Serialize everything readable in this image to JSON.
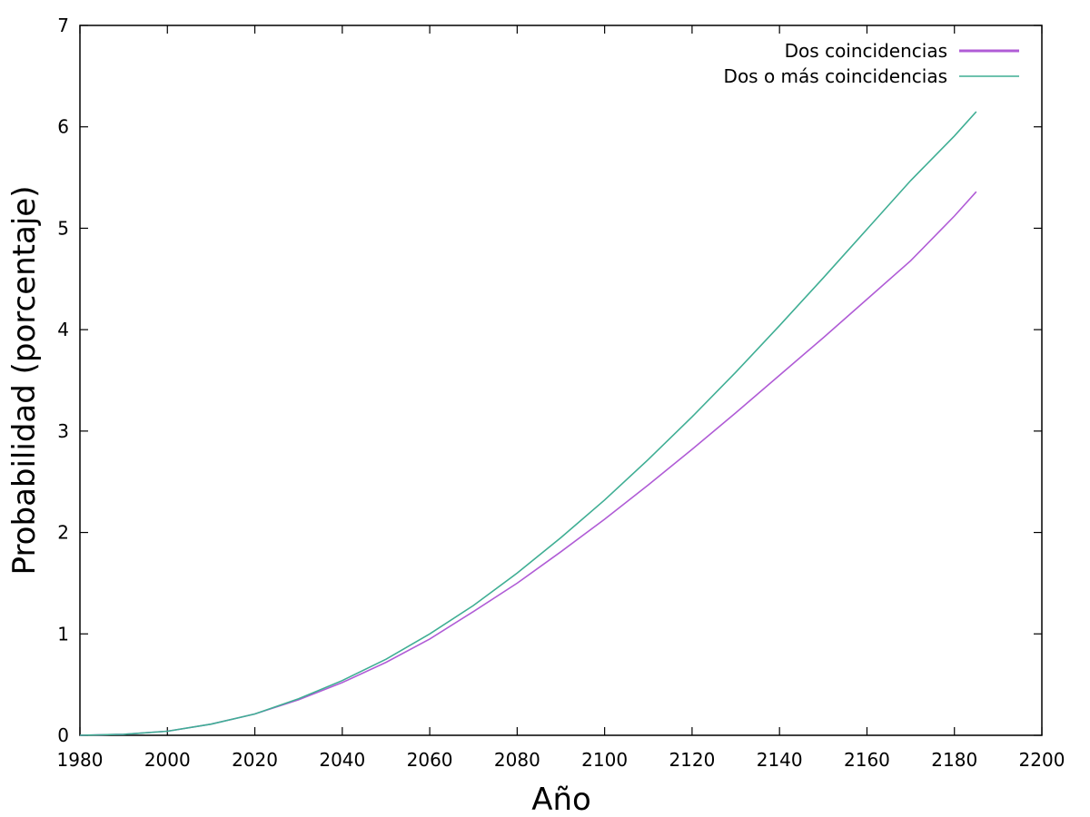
{
  "chart_data": {
    "type": "line",
    "title": "",
    "xlabel": "Año",
    "ylabel": "Probabilidad (porcentaje)",
    "xlim": [
      1980,
      2200
    ],
    "ylim": [
      0,
      7
    ],
    "x_ticks": [
      "1980",
      "2000",
      "2020",
      "2040",
      "2060",
      "2080",
      "2100",
      "2120",
      "2140",
      "2160",
      "2180",
      "2200"
    ],
    "y_ticks": [
      "0",
      "1",
      "2",
      "3",
      "4",
      "5",
      "6",
      "7"
    ],
    "grid": false,
    "legend_position": "top-right",
    "series": [
      {
        "name": "Dos coincidencias",
        "color": "#b05cd6",
        "x": [
          1980,
          1990,
          2000,
          2010,
          2020,
          2030,
          2040,
          2050,
          2060,
          2070,
          2080,
          2090,
          2100,
          2110,
          2120,
          2130,
          2140,
          2150,
          2160,
          2170,
          2180,
          2185
        ],
        "y": [
          0.0,
          0.01,
          0.04,
          0.11,
          0.21,
          0.35,
          0.52,
          0.72,
          0.95,
          1.22,
          1.5,
          1.81,
          2.13,
          2.47,
          2.82,
          3.18,
          3.55,
          3.92,
          4.3,
          4.68,
          5.12,
          5.36
        ]
      },
      {
        "name": "Dos o más coincidencias",
        "color": "#3fae94",
        "x": [
          1980,
          1990,
          2000,
          2010,
          2020,
          2030,
          2040,
          2050,
          2060,
          2070,
          2080,
          2090,
          2100,
          2110,
          2120,
          2130,
          2140,
          2150,
          2160,
          2170,
          2180,
          2185
        ],
        "y": [
          0.0,
          0.01,
          0.04,
          0.11,
          0.21,
          0.36,
          0.54,
          0.75,
          1.0,
          1.28,
          1.6,
          1.95,
          2.32,
          2.72,
          3.14,
          3.58,
          4.04,
          4.51,
          4.99,
          5.47,
          5.91,
          6.15
        ]
      }
    ]
  }
}
